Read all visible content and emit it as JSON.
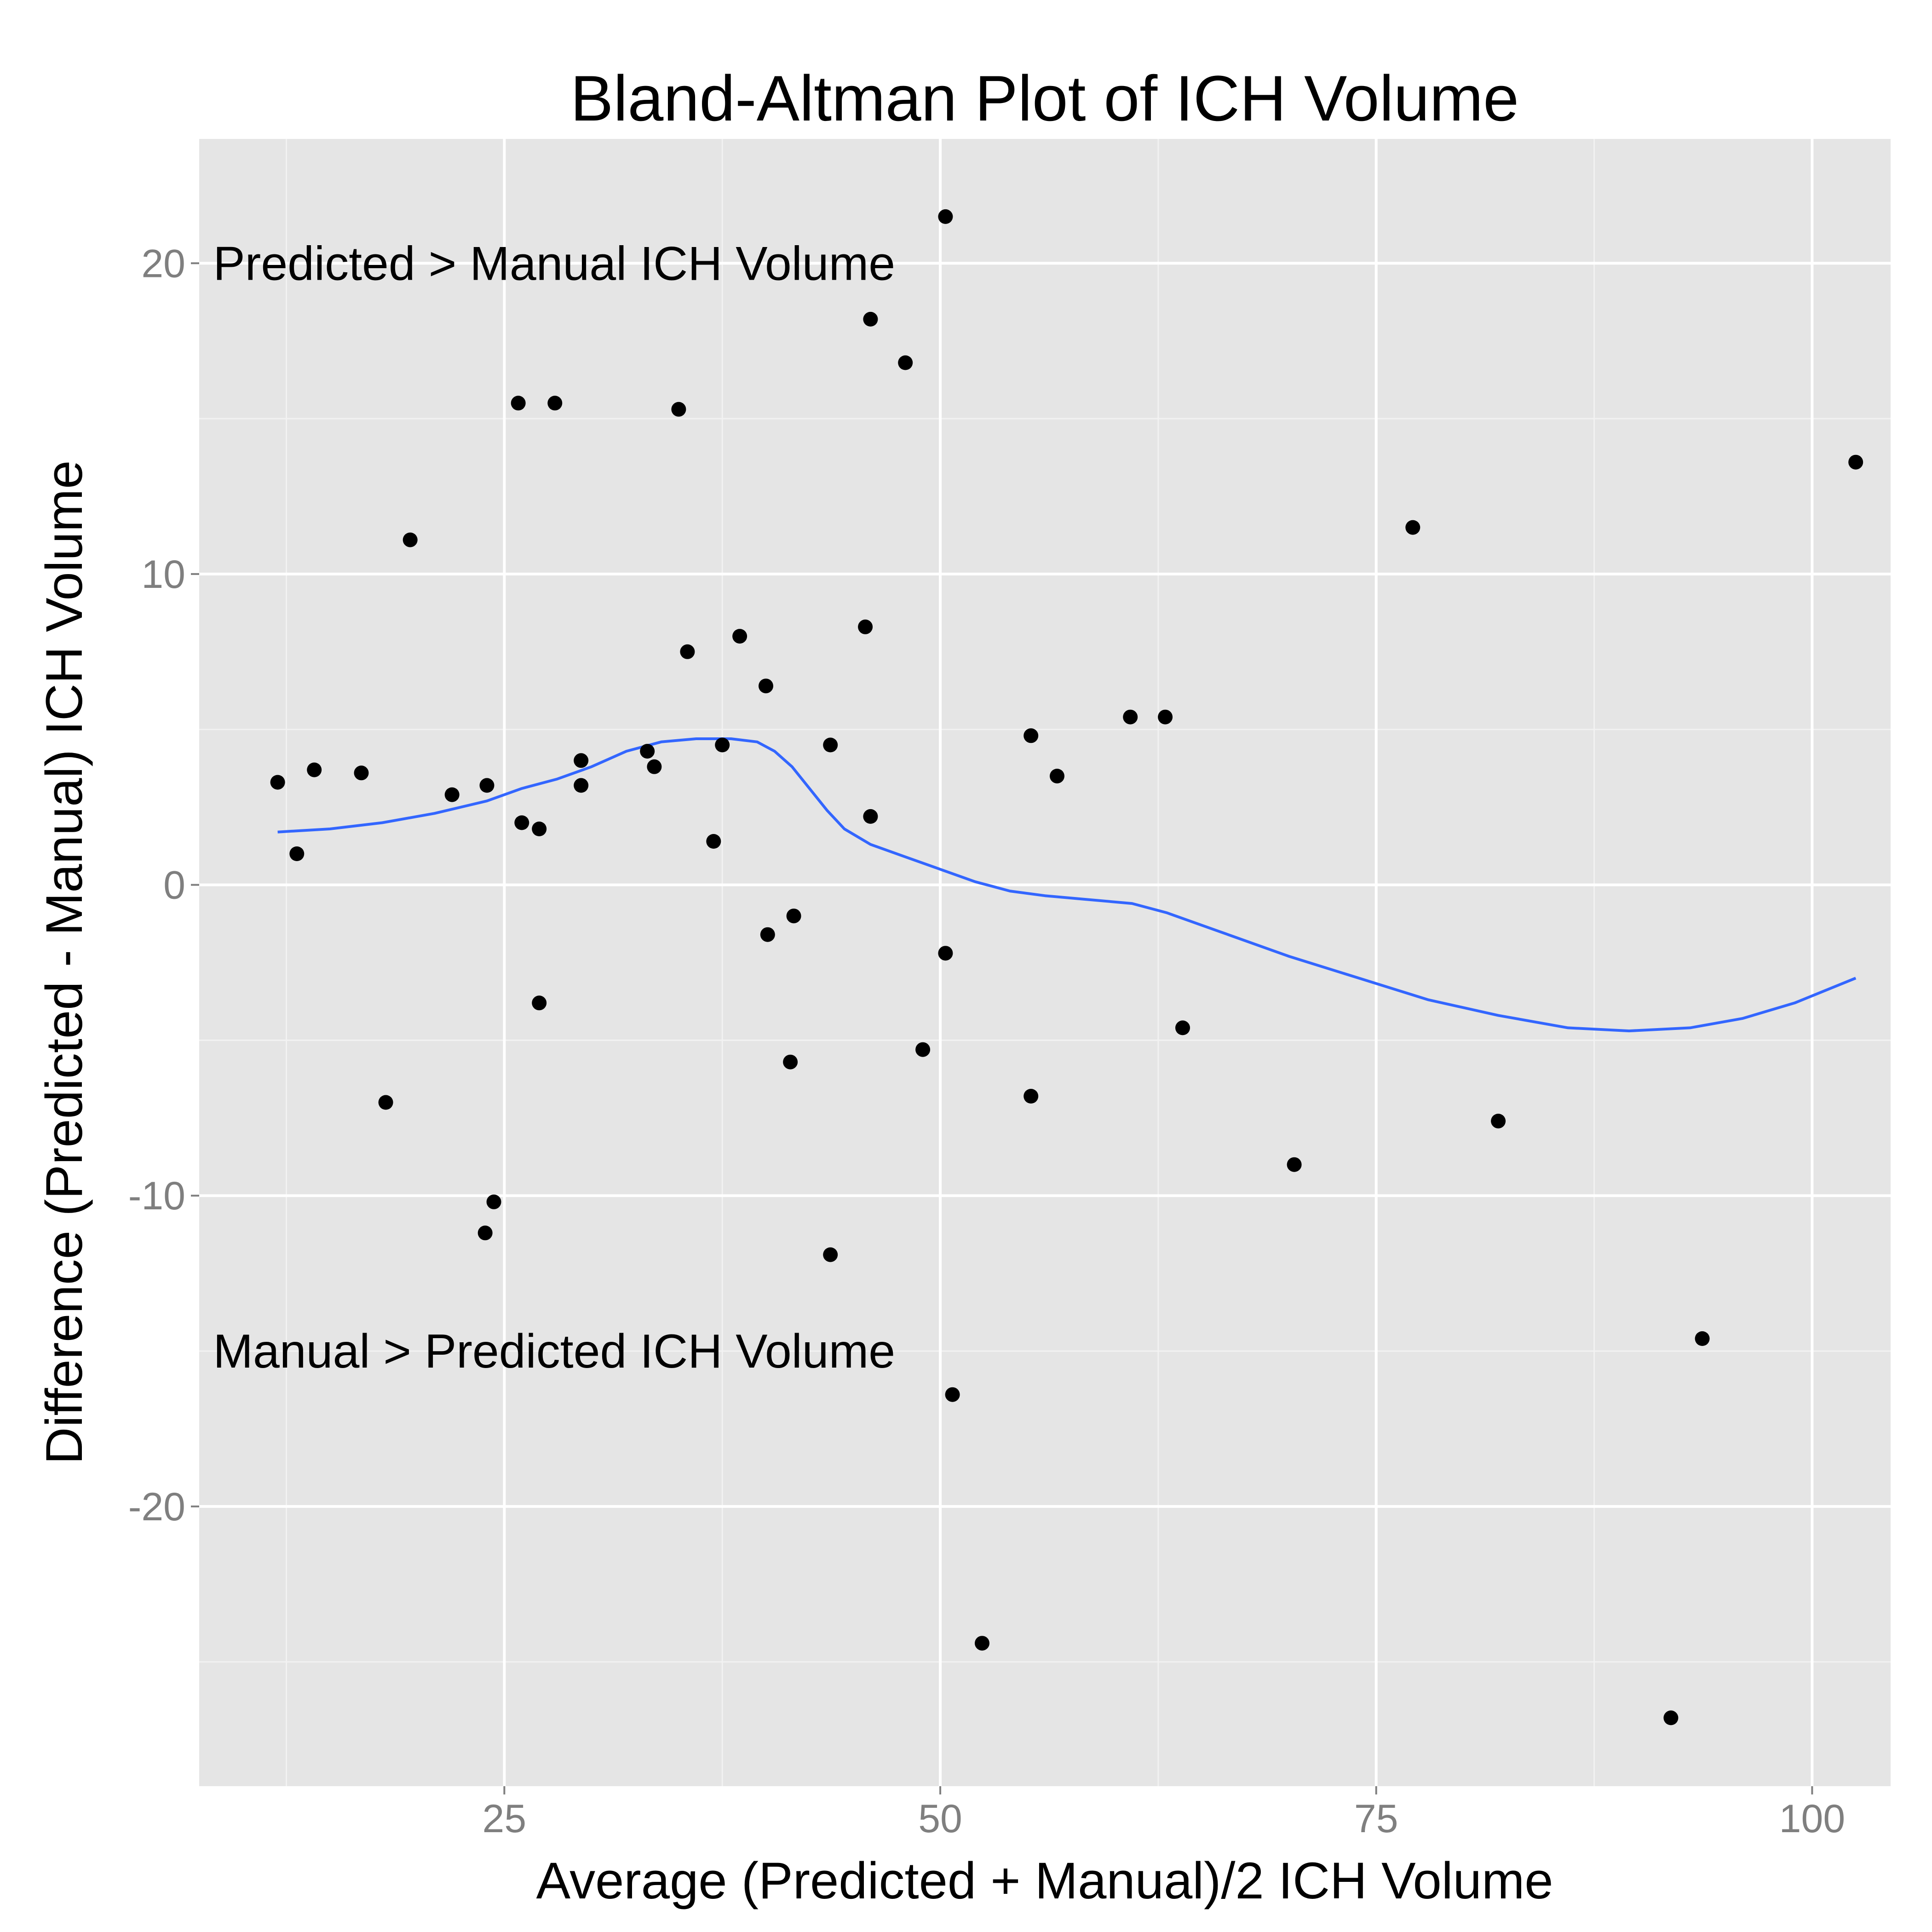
{
  "chart_data": {
    "type": "scatter",
    "title": "Bland-Altman Plot of ICH Volume",
    "xlabel": "Average (Predicted + Manual)/2 ICH Volume",
    "ylabel": "Difference (Predicted - Manual) ICH Volume",
    "xlim": [
      7.5,
      104.5
    ],
    "ylim": [
      -29.0,
      24.0
    ],
    "x_ticks": [
      25,
      50,
      75,
      100
    ],
    "x_tick_labels": [
      "25",
      "50",
      "75",
      "100"
    ],
    "y_ticks": [
      20,
      10,
      0,
      -10,
      -20
    ],
    "y_tick_labels": [
      "20",
      "10",
      "0",
      "-10",
      "-20"
    ],
    "grid": true,
    "annotations": [
      {
        "text": "Predicted > Manual ICH Volume",
        "x": 8.3,
        "y": 20
      },
      {
        "text": "Manual > Predicted ICH Volume",
        "x": 8.3,
        "y": -15
      }
    ],
    "series": [
      {
        "type": "scatter",
        "color": "#000000",
        "points": [
          [
            12.0,
            3.3
          ],
          [
            13.1,
            1.0
          ],
          [
            14.1,
            3.7
          ],
          [
            16.8,
            3.6
          ],
          [
            18.2,
            -7.0
          ],
          [
            19.6,
            11.1
          ],
          [
            22.0,
            2.9
          ],
          [
            23.9,
            -11.2
          ],
          [
            24.0,
            3.2
          ],
          [
            24.4,
            -10.2
          ],
          [
            25.8,
            15.5
          ],
          [
            26.0,
            2.0
          ],
          [
            27.0,
            -3.8
          ],
          [
            27.0,
            1.8
          ],
          [
            27.9,
            15.5
          ],
          [
            29.4,
            4.0
          ],
          [
            29.4,
            3.2
          ],
          [
            33.2,
            4.3
          ],
          [
            33.6,
            3.8
          ],
          [
            35.0,
            15.3
          ],
          [
            35.5,
            7.5
          ],
          [
            37.0,
            1.4
          ],
          [
            37.5,
            4.5
          ],
          [
            38.5,
            8.0
          ],
          [
            40.0,
            6.4
          ],
          [
            40.1,
            -1.6
          ],
          [
            41.4,
            -5.7
          ],
          [
            41.6,
            -1.0
          ],
          [
            43.7,
            4.5
          ],
          [
            43.7,
            -11.9
          ],
          [
            45.7,
            8.3
          ],
          [
            46.0,
            18.2
          ],
          [
            46.0,
            2.2
          ],
          [
            48.0,
            16.8
          ],
          [
            49.0,
            -5.3
          ],
          [
            50.3,
            21.5
          ],
          [
            50.3,
            -2.2
          ],
          [
            50.7,
            -16.4
          ],
          [
            52.4,
            -24.4
          ],
          [
            55.2,
            4.8
          ],
          [
            55.2,
            -6.8
          ],
          [
            56.7,
            3.5
          ],
          [
            60.9,
            5.4
          ],
          [
            62.9,
            5.4
          ],
          [
            63.9,
            -4.6
          ],
          [
            70.3,
            -9.0
          ],
          [
            77.1,
            11.5
          ],
          [
            82.0,
            -7.6
          ],
          [
            91.9,
            -26.8
          ],
          [
            93.7,
            -14.6
          ],
          [
            102.5,
            13.6
          ]
        ]
      },
      {
        "type": "line",
        "name": "",
        "color": "#3366ff",
        "points": [
          [
            12.0,
            1.7
          ],
          [
            15.0,
            1.8
          ],
          [
            18.0,
            2.0
          ],
          [
            21.0,
            2.3
          ],
          [
            24.0,
            2.7
          ],
          [
            26.0,
            3.1
          ],
          [
            28.0,
            3.4
          ],
          [
            30.0,
            3.8
          ],
          [
            32.0,
            4.3
          ],
          [
            34.0,
            4.6
          ],
          [
            36.0,
            4.7
          ],
          [
            38.0,
            4.7
          ],
          [
            39.5,
            4.6
          ],
          [
            40.5,
            4.3
          ],
          [
            41.5,
            3.8
          ],
          [
            42.5,
            3.1
          ],
          [
            43.5,
            2.4
          ],
          [
            44.5,
            1.8
          ],
          [
            46.0,
            1.3
          ],
          [
            48.0,
            0.9
          ],
          [
            50.0,
            0.5
          ],
          [
            52.0,
            0.1
          ],
          [
            54.0,
            -0.2
          ],
          [
            56.0,
            -0.35
          ],
          [
            58.0,
            -0.45
          ],
          [
            61.0,
            -0.6
          ],
          [
            63.0,
            -0.9
          ],
          [
            66.0,
            -1.5
          ],
          [
            70.0,
            -2.3
          ],
          [
            74.0,
            -3.0
          ],
          [
            78.0,
            -3.7
          ],
          [
            82.0,
            -4.2
          ],
          [
            86.0,
            -4.6
          ],
          [
            89.5,
            -4.7
          ],
          [
            93.0,
            -4.6
          ],
          [
            96.0,
            -4.3
          ],
          [
            99.0,
            -3.8
          ],
          [
            102.5,
            -3.0
          ]
        ]
      }
    ]
  }
}
